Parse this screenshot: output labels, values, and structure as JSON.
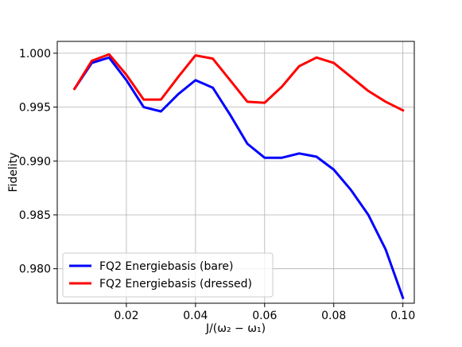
{
  "chart_data": {
    "type": "line",
    "title": "",
    "xlabel": "J/(ω₂ − ω₁)",
    "ylabel": "Fidelity",
    "xlim": [
      0.0,
      0.1033
    ],
    "ylim": [
      0.9768,
      1.0011
    ],
    "xticks": [
      0.02,
      0.04,
      0.06,
      0.08,
      0.1
    ],
    "xtick_labels": [
      "0.02",
      "0.04",
      "0.06",
      "0.08",
      "0.10"
    ],
    "yticks": [
      0.98,
      0.985,
      0.99,
      0.995,
      1.0
    ],
    "ytick_labels": [
      "0.980",
      "0.985",
      "0.990",
      "0.995",
      "1.000"
    ],
    "grid": true,
    "legend_position": "lower-left",
    "x": [
      0.005,
      0.01,
      0.015,
      0.02,
      0.025,
      0.03,
      0.035,
      0.04,
      0.045,
      0.05,
      0.055,
      0.06,
      0.065,
      0.07,
      0.075,
      0.08,
      0.085,
      0.09,
      0.095,
      0.1
    ],
    "series": [
      {
        "name": "FQ2 Energiebasis (bare)",
        "color": "#0000ff",
        "values": [
          0.9967,
          0.9991,
          0.9996,
          0.9975,
          0.995,
          0.9946,
          0.9962,
          0.9975,
          0.9968,
          0.9943,
          0.9916,
          0.9903,
          0.9903,
          0.9907,
          0.9904,
          0.9892,
          0.9873,
          0.985,
          0.9818,
          0.9773
        ]
      },
      {
        "name": "FQ2 Energiebasis (dressed)",
        "color": "#ff0000",
        "values": [
          0.9967,
          0.9993,
          0.9999,
          0.998,
          0.9957,
          0.9957,
          0.9978,
          0.9998,
          0.9995,
          0.9975,
          0.9955,
          0.9954,
          0.9969,
          0.9988,
          0.9996,
          0.9991,
          0.9978,
          0.9965,
          0.9955,
          0.9947
        ]
      }
    ]
  }
}
